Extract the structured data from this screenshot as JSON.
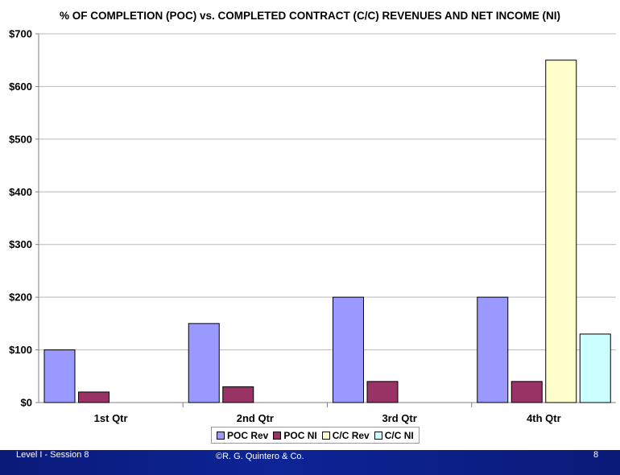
{
  "chart_data": {
    "type": "bar",
    "title": "% OF COMPLETION (POC) vs. COMPLETED CONTRACT (C/C) REVENUES AND NET INCOME (NI)",
    "categories": [
      "1st Qtr",
      "2nd Qtr",
      "3rd Qtr",
      "4th Qtr"
    ],
    "series": [
      {
        "name": "POC Rev",
        "values": [
          100,
          150,
          200,
          200
        ],
        "color": "#9999ff"
      },
      {
        "name": "POC NI",
        "values": [
          20,
          30,
          40,
          40
        ],
        "color": "#993366"
      },
      {
        "name": "C/C Rev",
        "values": [
          0,
          0,
          0,
          650
        ],
        "color": "#ffffcc"
      },
      {
        "name": "C/C NI",
        "values": [
          0,
          0,
          0,
          130
        ],
        "color": "#ccffff"
      }
    ],
    "y_ticks": [
      "$0",
      "$100",
      "$200",
      "$300",
      "$400",
      "$500",
      "$600",
      "$700"
    ],
    "ylim": [
      0,
      700
    ],
    "xlabel": "",
    "ylabel": "",
    "grid": true,
    "legend_position": "bottom"
  },
  "footer": {
    "left": "Level I - Session 8",
    "center": "©R. G. Quintero & Co.",
    "right": "8"
  }
}
